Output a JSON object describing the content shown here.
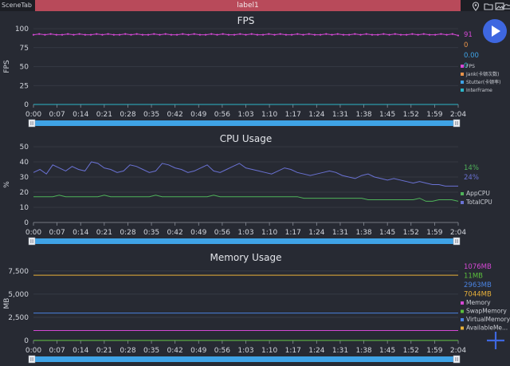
{
  "top_bar": {
    "scene_tab": "SceneTab",
    "label": "label1",
    "icons": [
      "location-pin-icon",
      "folder-icon",
      "image-icon",
      "cloud-icon"
    ]
  },
  "time_ticks": [
    "0:00",
    "0:07",
    "0:14",
    "0:21",
    "0:28",
    "0:35",
    "0:42",
    "0:49",
    "0:56",
    "1:03",
    "1:10",
    "1:17",
    "1:24",
    "1:31",
    "1:38",
    "1:45",
    "1:52",
    "1:59",
    "2:04"
  ],
  "colors": {
    "fps": "#d548d5",
    "jank": "#e8934a",
    "stutter": "#3fa3e6",
    "interframe": "#2cb7c9",
    "app_cpu": "#4fb35a",
    "total_cpu": "#6a72d4",
    "memory": "#d548d5",
    "swap": "#5bbf3c",
    "virtual": "#4a82e0",
    "available": "#e8b13a",
    "scrollbar": "#3fa3e6",
    "play": "#3e67e0",
    "add": "#3e67e0"
  },
  "fps": {
    "title": "FPS",
    "ylabel": "FPS",
    "yticks": [
      "100",
      "75",
      "50",
      "25",
      "0"
    ],
    "values": [
      "91",
      "0",
      "0.00",
      "0"
    ],
    "legend": [
      "FPS",
      "Jank(卡顿次数)",
      "Stutter(卡顿率)",
      "InterFrame"
    ]
  },
  "cpu": {
    "title": "CPU Usage",
    "ylabel": "%",
    "yticks": [
      "50",
      "40",
      "30",
      "20",
      "10",
      "0"
    ],
    "values": [
      "14%",
      "24%"
    ],
    "legend": [
      "AppCPU",
      "TotalCPU"
    ]
  },
  "memory": {
    "title": "Memory Usage",
    "ylabel": "MB",
    "yticks": [
      "7,500",
      "5,000",
      "2,500",
      "0"
    ],
    "values": [
      "1076MB",
      "11MB",
      "2963MB",
      "7044MB"
    ],
    "legend": [
      "Memory",
      "SwapMemory",
      "VirtualMemory",
      "AvailableMe..."
    ]
  },
  "chart_data": [
    {
      "type": "line",
      "title": "FPS",
      "ylabel": "FPS",
      "ylim": [
        0,
        100
      ],
      "x_range": [
        "0:00",
        "2:04"
      ],
      "series": [
        {
          "name": "FPS",
          "values": [
            92,
            93,
            92,
            93,
            92,
            92,
            93,
            92,
            93,
            92,
            92,
            93,
            92,
            93,
            92,
            92,
            93,
            92,
            93,
            92,
            92,
            93,
            92,
            93,
            92,
            92,
            93,
            92,
            93,
            92,
            92,
            93,
            92,
            93,
            92,
            92,
            93,
            92,
            93,
            92,
            92,
            93,
            92,
            93,
            92,
            92,
            93,
            92,
            93,
            92,
            92,
            93,
            92,
            93,
            92,
            92,
            93,
            92,
            93,
            92,
            92,
            93,
            92,
            93,
            92,
            92,
            93,
            92,
            93,
            92,
            92,
            93,
            92,
            93,
            91
          ]
        },
        {
          "name": "Jank(卡顿次数)",
          "values": [
            0,
            0
          ]
        },
        {
          "name": "Stutter(卡顿率)",
          "values": [
            0,
            0
          ]
        },
        {
          "name": "InterFrame",
          "values": [
            0,
            0
          ]
        }
      ]
    },
    {
      "type": "line",
      "title": "CPU Usage",
      "ylabel": "%",
      "ylim": [
        0,
        50
      ],
      "x_range": [
        "0:00",
        "2:04"
      ],
      "series": [
        {
          "name": "AppCPU",
          "values": [
            17,
            17,
            17,
            17,
            18,
            17,
            17,
            17,
            17,
            17,
            17,
            18,
            17,
            17,
            17,
            17,
            17,
            17,
            17,
            18,
            17,
            17,
            17,
            17,
            17,
            17,
            17,
            17,
            18,
            17,
            17,
            17,
            17,
            17,
            17,
            17,
            17,
            17,
            17,
            17,
            17,
            17,
            16,
            16,
            16,
            16,
            16,
            16,
            16,
            16,
            16,
            16,
            15,
            15,
            15,
            15,
            15,
            15,
            15,
            15,
            16,
            14,
            14,
            15,
            15,
            15,
            14
          ]
        },
        {
          "name": "TotalCPU",
          "values": [
            33,
            35,
            32,
            38,
            36,
            34,
            37,
            35,
            34,
            40,
            39,
            36,
            35,
            33,
            34,
            38,
            37,
            35,
            33,
            34,
            39,
            38,
            36,
            35,
            33,
            34,
            36,
            38,
            34,
            33,
            35,
            37,
            39,
            36,
            35,
            34,
            33,
            32,
            34,
            36,
            35,
            33,
            32,
            31,
            32,
            33,
            34,
            33,
            31,
            30,
            29,
            31,
            32,
            30,
            29,
            28,
            29,
            28,
            27,
            26,
            27,
            26,
            25,
            25,
            24,
            24,
            24
          ]
        }
      ]
    },
    {
      "type": "line",
      "title": "Memory Usage",
      "ylabel": "MB",
      "ylim": [
        0,
        8000
      ],
      "x_range": [
        "0:00",
        "2:04"
      ],
      "series": [
        {
          "name": "Memory",
          "values": [
            1076,
            1076
          ]
        },
        {
          "name": "SwapMemory",
          "values": [
            11,
            11
          ]
        },
        {
          "name": "VirtualMemory",
          "values": [
            2963,
            2963
          ]
        },
        {
          "name": "AvailableMe...",
          "values": [
            7044,
            7044
          ]
        }
      ]
    }
  ]
}
